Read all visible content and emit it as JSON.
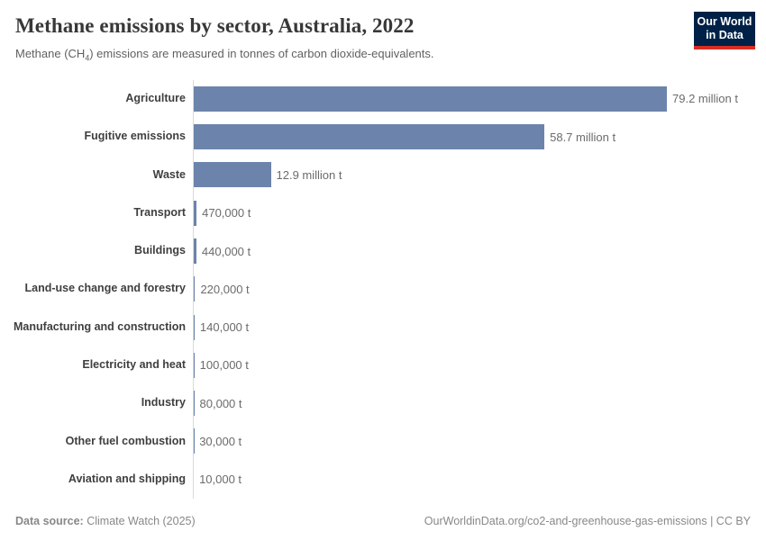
{
  "header": {
    "title": "Methane emissions by sector, Australia, 2022",
    "subtitle_prefix": "Methane (CH",
    "subtitle_sub": "4",
    "subtitle_suffix": ") emissions are measured in tonnes of carbon dioxide-equivalents.",
    "logo_line1": "Our World",
    "logo_line2": "in Data"
  },
  "chart_data": {
    "type": "bar",
    "orientation": "horizontal",
    "title": "Methane emissions by sector, Australia, 2022",
    "unit": "t",
    "categories": [
      "Agriculture",
      "Fugitive emissions",
      "Waste",
      "Transport",
      "Buildings",
      "Land-use change and forestry",
      "Manufacturing and construction",
      "Electricity and heat",
      "Industry",
      "Other fuel combustion",
      "Aviation and shipping"
    ],
    "values": [
      79200000,
      58700000,
      12900000,
      470000,
      440000,
      220000,
      140000,
      100000,
      80000,
      30000,
      10000
    ],
    "value_labels": [
      "79.2 million t",
      "58.7 million t",
      "12.9 million t",
      "470,000 t",
      "440,000 t",
      "220,000 t",
      "140,000 t",
      "100,000 t",
      "80,000 t",
      "30,000 t",
      "10,000 t"
    ],
    "xlim": [
      0,
      79200000
    ],
    "grid": false,
    "legend": false,
    "bar_color": "#6c84ac",
    "axis_color": "#d9d9d9"
  },
  "footer": {
    "datasource_label": "Data source:",
    "datasource_value": "Climate Watch (2025)",
    "attribution": "OurWorldinData.org/co2-and-greenhouse-gas-emissions | CC BY"
  }
}
